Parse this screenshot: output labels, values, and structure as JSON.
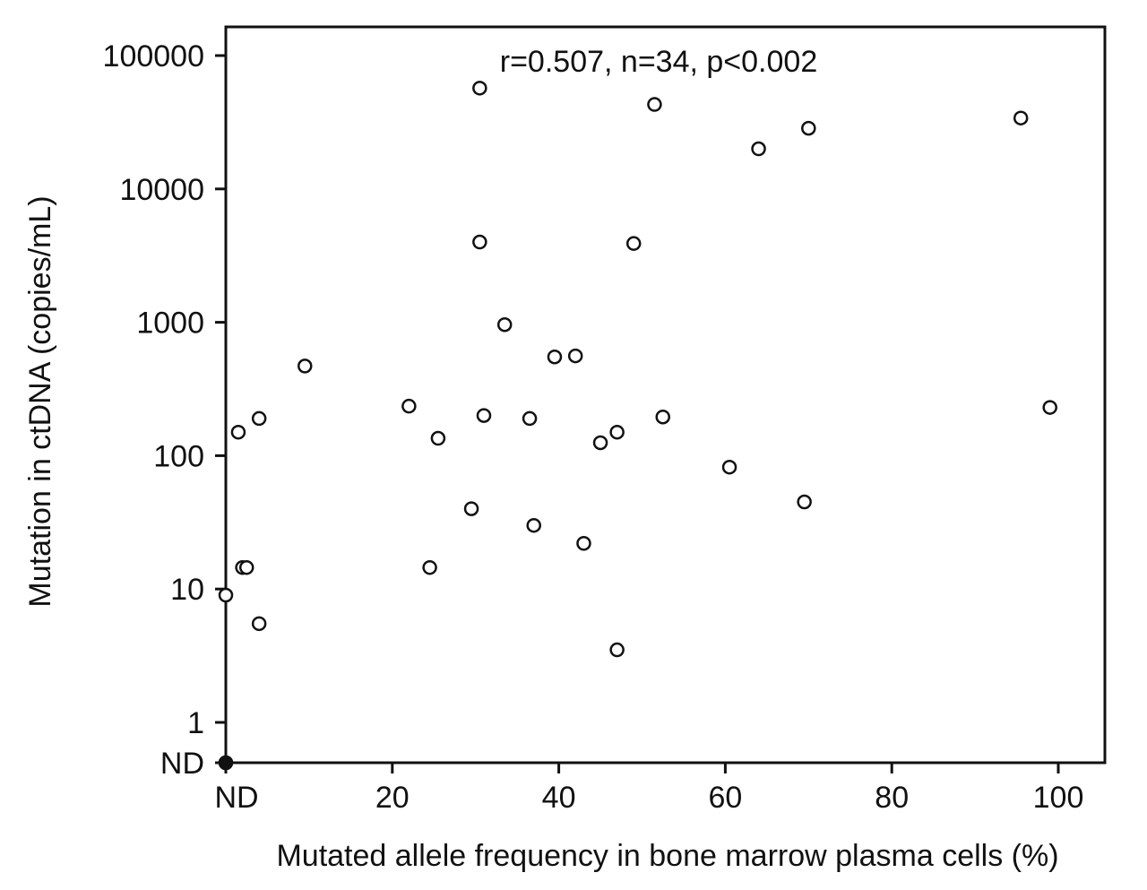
{
  "chart_data": {
    "type": "scatter",
    "annotation": "r=0.507, n=34, p<0.002",
    "xlabel": "Mutated allele frequency in bone marrow plasma cells (%)",
    "ylabel": "Mutation in ctDNA (copies/mL)",
    "xlim": [
      0,
      105
    ],
    "x_scale": "linear",
    "y_scale": "log",
    "x_ticks": [
      {
        "value": 0,
        "label": "ND"
      },
      {
        "value": 20,
        "label": "20"
      },
      {
        "value": 40,
        "label": "40"
      },
      {
        "value": 60,
        "label": "60"
      },
      {
        "value": 80,
        "label": "80"
      },
      {
        "value": 100,
        "label": "100"
      }
    ],
    "y_ticks": [
      {
        "value": "ND",
        "label": "ND"
      },
      {
        "value": 1,
        "label": "1"
      },
      {
        "value": 10,
        "label": "10"
      },
      {
        "value": 100,
        "label": "100"
      },
      {
        "value": 1000,
        "label": "1000"
      },
      {
        "value": 10000,
        "label": "10000"
      },
      {
        "value": 100000,
        "label": "100000"
      }
    ],
    "ylim": [
      0.5,
      300000
    ],
    "grid": false,
    "legend": "none",
    "marker": "open-circle",
    "points": [
      {
        "x": 30.5,
        "y": 57000
      },
      {
        "x": 51.5,
        "y": 43000
      },
      {
        "x": 95.5,
        "y": 34000
      },
      {
        "x": 70,
        "y": 28500
      },
      {
        "x": 64,
        "y": 20000
      },
      {
        "x": 30.5,
        "y": 4000
      },
      {
        "x": 49,
        "y": 3900
      },
      {
        "x": 33.5,
        "y": 960
      },
      {
        "x": 42,
        "y": 560
      },
      {
        "x": 39.5,
        "y": 550
      },
      {
        "x": 9.5,
        "y": 470
      },
      {
        "x": 22,
        "y": 235
      },
      {
        "x": 99,
        "y": 230
      },
      {
        "x": 31,
        "y": 200
      },
      {
        "x": 52.5,
        "y": 195
      },
      {
        "x": 4,
        "y": 190
      },
      {
        "x": 36.5,
        "y": 190
      },
      {
        "x": 1.5,
        "y": 150
      },
      {
        "x": 47,
        "y": 150
      },
      {
        "x": 25.5,
        "y": 135
      },
      {
        "x": 45,
        "y": 125
      },
      {
        "x": 60.5,
        "y": 82
      },
      {
        "x": 69.5,
        "y": 45
      },
      {
        "x": 29.5,
        "y": 40
      },
      {
        "x": 37,
        "y": 30
      },
      {
        "x": 43,
        "y": 22
      },
      {
        "x": 2,
        "y": 14.5
      },
      {
        "x": 2.5,
        "y": 14.5
      },
      {
        "x": 24.5,
        "y": 14.5
      },
      {
        "x": 0,
        "y": 9
      },
      {
        "x": 4,
        "y": 5.5
      },
      {
        "x": 47,
        "y": 3.5
      },
      {
        "x": 0,
        "y": "ND"
      },
      {
        "x": 0,
        "y": "ND"
      }
    ]
  }
}
